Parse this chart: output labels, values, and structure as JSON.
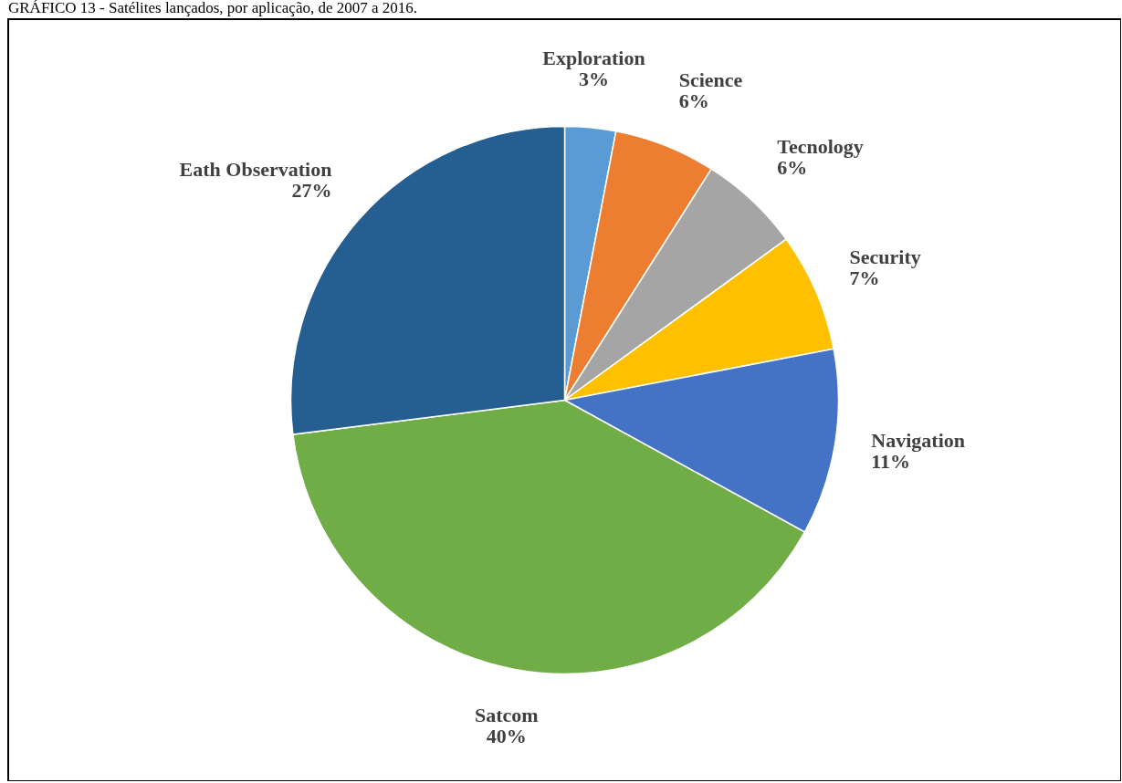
{
  "chart_data": {
    "type": "pie",
    "title": "GRÁFICO 13 - Satélites lançados, por aplicação, de 2007 a 2016.",
    "categories": [
      "Exploration",
      "Science",
      "Tecnology",
      "Security",
      "Navigation",
      "Satcom",
      "Eath Observation"
    ],
    "values": [
      3,
      6,
      6,
      7,
      11,
      40,
      27
    ],
    "colors": [
      "#5b9bd5",
      "#ed7d31",
      "#a5a5a5",
      "#ffc000",
      "#4472c4",
      "#70ad47",
      "#255e91"
    ],
    "value_labels": [
      "3%",
      "6%",
      "6%",
      "7%",
      "11%",
      "40%",
      "27%"
    ]
  }
}
